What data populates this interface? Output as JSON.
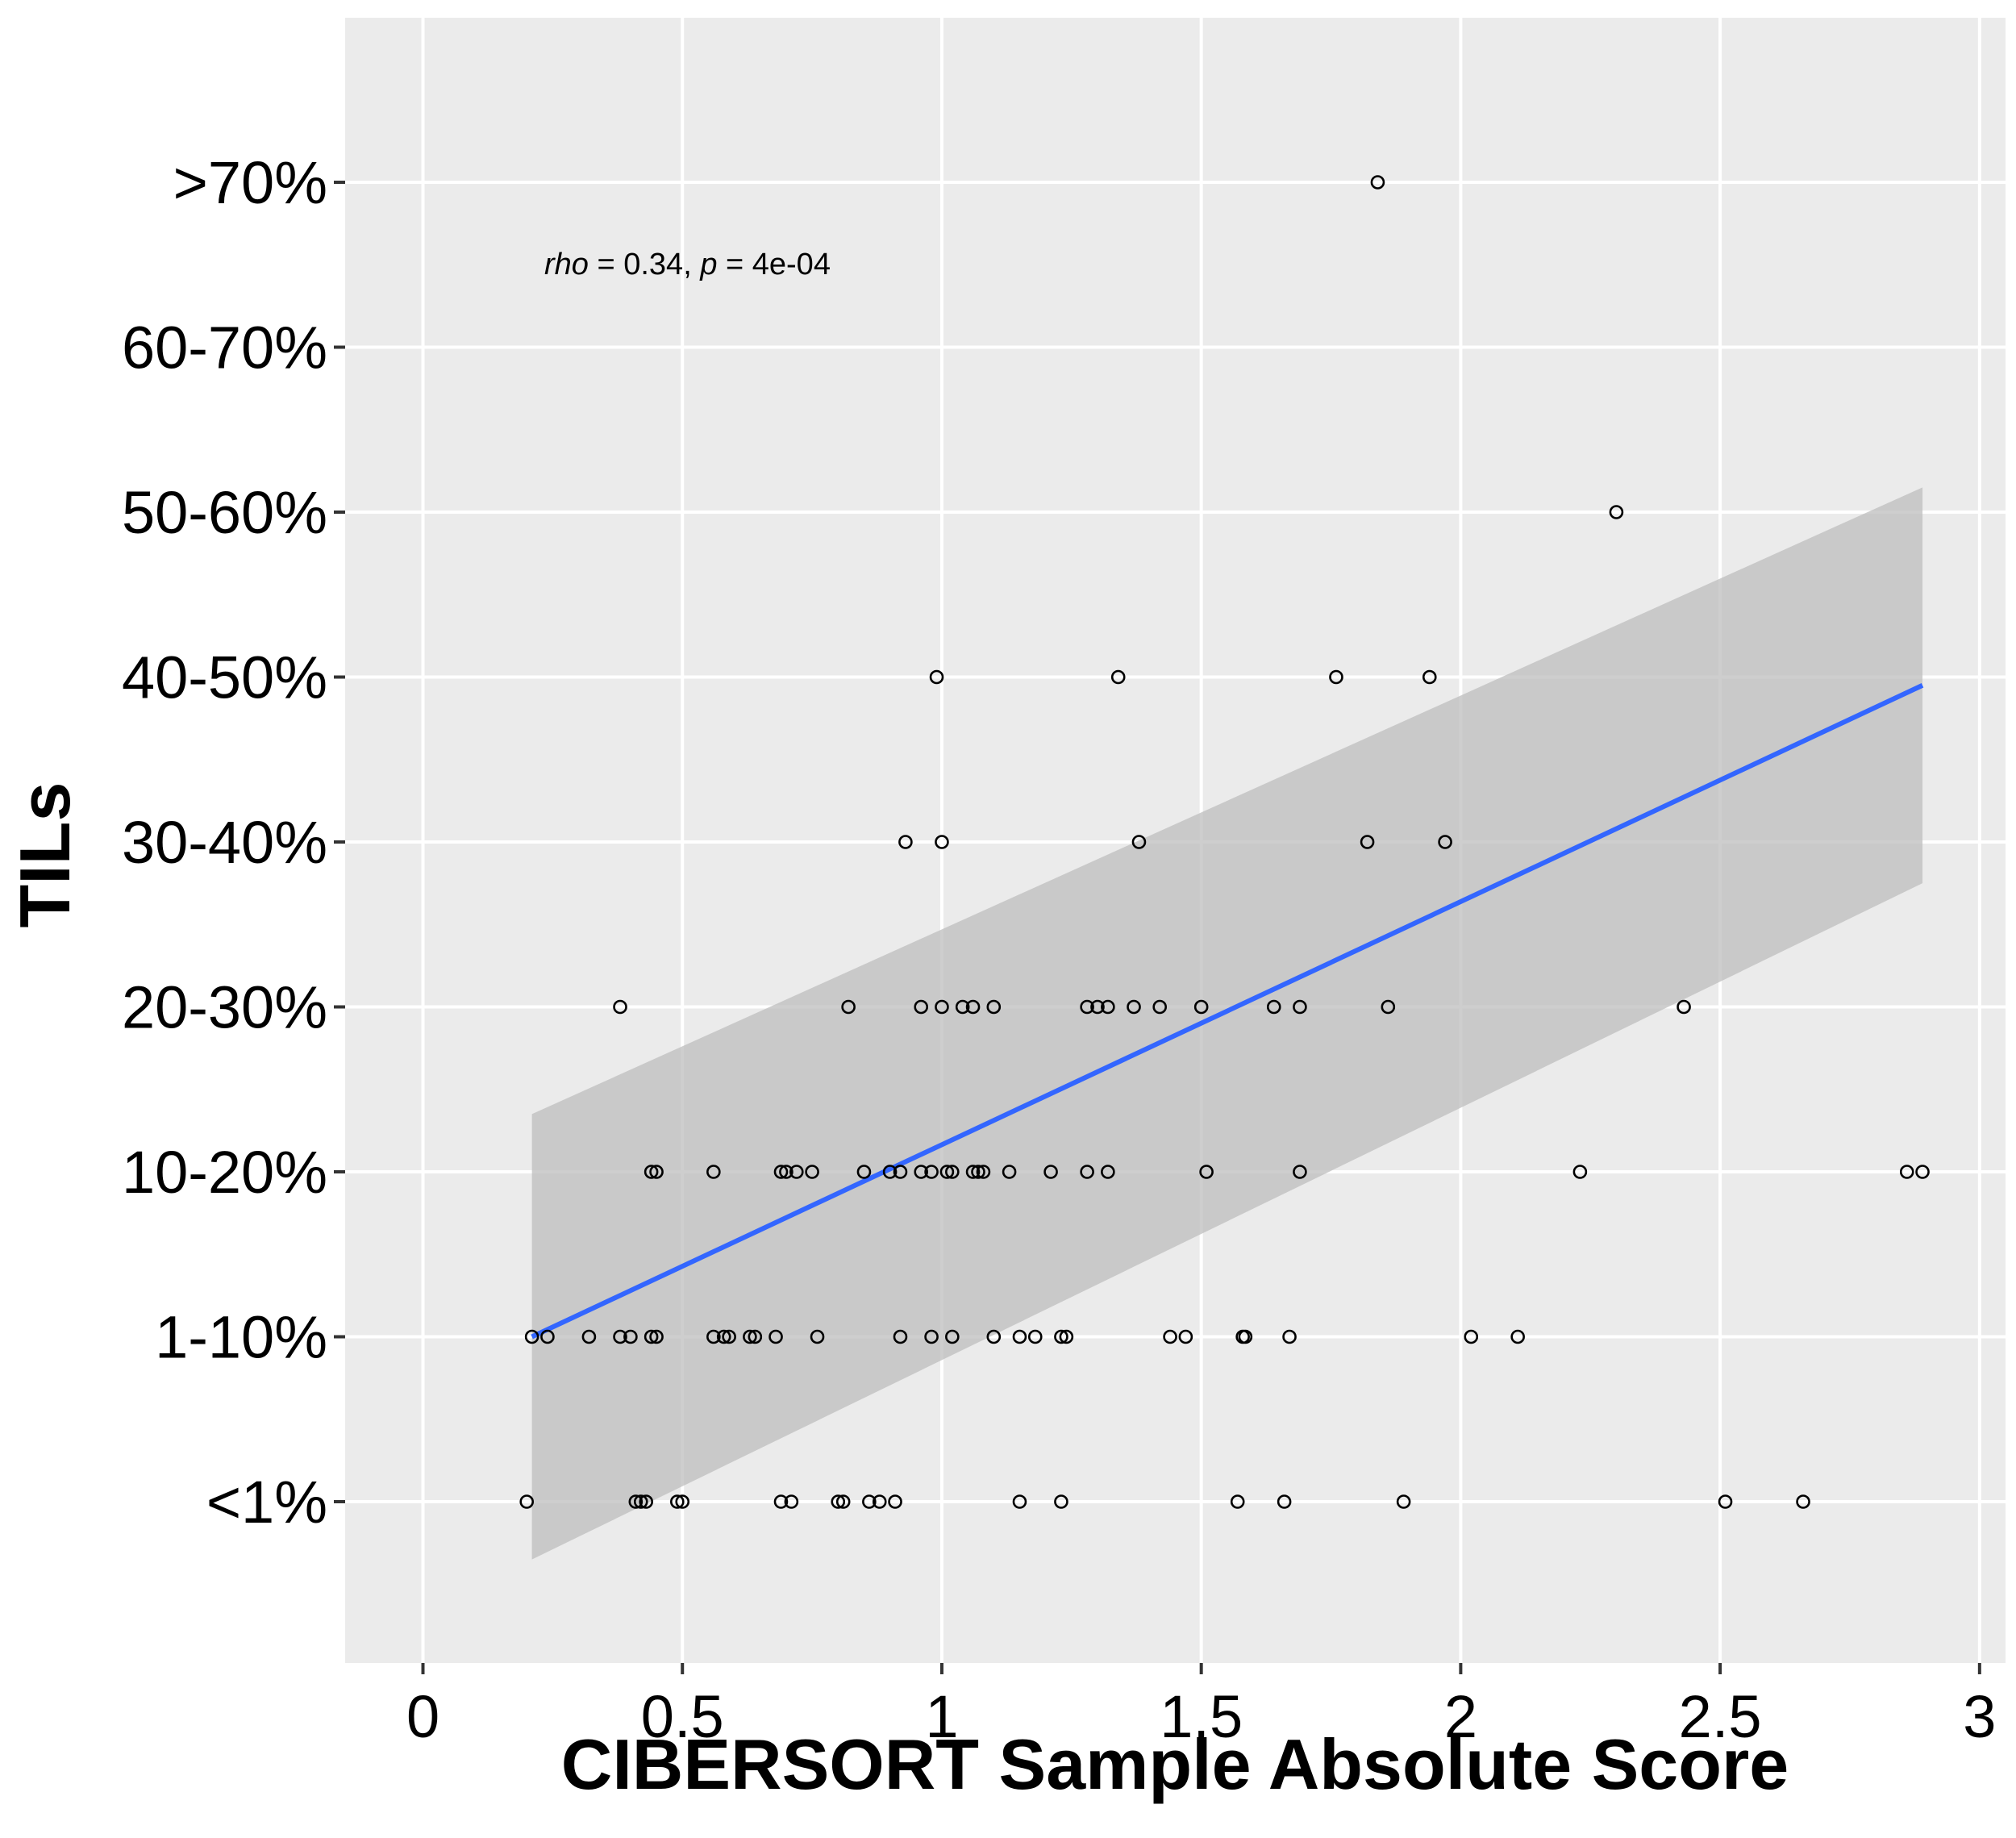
{
  "chart_data": {
    "type": "scatter",
    "title": "",
    "xlabel": "CIBERSORT Sample Absolute Score",
    "ylabel": "TILs",
    "xlim": [
      -0.15,
      3.05
    ],
    "x_ticks": [
      0,
      0.5,
      1,
      1.5,
      2,
      2.5,
      3
    ],
    "x_tick_labels": [
      "0",
      "0.5",
      "1",
      "1.5",
      "2",
      "2.5",
      "3"
    ],
    "categories": [
      "<1%",
      "1-10%",
      "10-20%",
      "20-30%",
      "30-40%",
      "40-50%",
      "50-60%",
      "60-70%",
      ">70%"
    ],
    "grid": true,
    "legend": "none",
    "annotation": {
      "rho_label": "rho",
      "rho_text": " = 0.34, ",
      "p_label": "p",
      "p_text": " = 4e-04"
    },
    "colors": {
      "panel": "#ebebeb",
      "grid": "#ffffff",
      "line": "#3366ff",
      "ribbon": "#bdbdbd",
      "point": "#000000"
    },
    "series": [
      {
        "type": "points",
        "points": [
          {
            "x": 1.84,
            "y": ">70%"
          },
          {
            "x": 2.3,
            "y": "50-60%"
          },
          {
            "x": 0.99,
            "y": "40-50%"
          },
          {
            "x": 1.34,
            "y": "40-50%"
          },
          {
            "x": 1.76,
            "y": "40-50%"
          },
          {
            "x": 1.94,
            "y": "40-50%"
          },
          {
            "x": 0.93,
            "y": "30-40%"
          },
          {
            "x": 1.0,
            "y": "30-40%"
          },
          {
            "x": 1.38,
            "y": "30-40%"
          },
          {
            "x": 1.82,
            "y": "30-40%"
          },
          {
            "x": 1.97,
            "y": "30-40%"
          },
          {
            "x": 0.38,
            "y": "20-30%"
          },
          {
            "x": 0.82,
            "y": "20-30%"
          },
          {
            "x": 0.96,
            "y": "20-30%"
          },
          {
            "x": 1.0,
            "y": "20-30%"
          },
          {
            "x": 1.04,
            "y": "20-30%"
          },
          {
            "x": 1.06,
            "y": "20-30%"
          },
          {
            "x": 1.1,
            "y": "20-30%"
          },
          {
            "x": 1.28,
            "y": "20-30%"
          },
          {
            "x": 1.3,
            "y": "20-30%"
          },
          {
            "x": 1.32,
            "y": "20-30%"
          },
          {
            "x": 1.37,
            "y": "20-30%"
          },
          {
            "x": 1.42,
            "y": "20-30%"
          },
          {
            "x": 1.5,
            "y": "20-30%"
          },
          {
            "x": 1.64,
            "y": "20-30%"
          },
          {
            "x": 1.69,
            "y": "20-30%"
          },
          {
            "x": 1.86,
            "y": "20-30%"
          },
          {
            "x": 2.43,
            "y": "20-30%"
          },
          {
            "x": 0.44,
            "y": "10-20%"
          },
          {
            "x": 0.45,
            "y": "10-20%"
          },
          {
            "x": 0.56,
            "y": "10-20%"
          },
          {
            "x": 0.69,
            "y": "10-20%"
          },
          {
            "x": 0.7,
            "y": "10-20%"
          },
          {
            "x": 0.72,
            "y": "10-20%"
          },
          {
            "x": 0.75,
            "y": "10-20%"
          },
          {
            "x": 0.85,
            "y": "10-20%"
          },
          {
            "x": 0.9,
            "y": "10-20%"
          },
          {
            "x": 0.92,
            "y": "10-20%"
          },
          {
            "x": 0.96,
            "y": "10-20%"
          },
          {
            "x": 0.98,
            "y": "10-20%"
          },
          {
            "x": 1.01,
            "y": "10-20%"
          },
          {
            "x": 1.02,
            "y": "10-20%"
          },
          {
            "x": 1.06,
            "y": "10-20%"
          },
          {
            "x": 1.07,
            "y": "10-20%"
          },
          {
            "x": 1.08,
            "y": "10-20%"
          },
          {
            "x": 1.13,
            "y": "10-20%"
          },
          {
            "x": 1.21,
            "y": "10-20%"
          },
          {
            "x": 1.28,
            "y": "10-20%"
          },
          {
            "x": 1.32,
            "y": "10-20%"
          },
          {
            "x": 1.51,
            "y": "10-20%"
          },
          {
            "x": 1.69,
            "y": "10-20%"
          },
          {
            "x": 2.23,
            "y": "10-20%"
          },
          {
            "x": 2.86,
            "y": "10-20%"
          },
          {
            "x": 2.89,
            "y": "10-20%"
          },
          {
            "x": 0.21,
            "y": "1-10%"
          },
          {
            "x": 0.24,
            "y": "1-10%"
          },
          {
            "x": 0.32,
            "y": "1-10%"
          },
          {
            "x": 0.38,
            "y": "1-10%"
          },
          {
            "x": 0.4,
            "y": "1-10%"
          },
          {
            "x": 0.44,
            "y": "1-10%"
          },
          {
            "x": 0.45,
            "y": "1-10%"
          },
          {
            "x": 0.56,
            "y": "1-10%"
          },
          {
            "x": 0.58,
            "y": "1-10%"
          },
          {
            "x": 0.59,
            "y": "1-10%"
          },
          {
            "x": 0.63,
            "y": "1-10%"
          },
          {
            "x": 0.64,
            "y": "1-10%"
          },
          {
            "x": 0.68,
            "y": "1-10%"
          },
          {
            "x": 0.76,
            "y": "1-10%"
          },
          {
            "x": 0.92,
            "y": "1-10%"
          },
          {
            "x": 0.98,
            "y": "1-10%"
          },
          {
            "x": 1.02,
            "y": "1-10%"
          },
          {
            "x": 1.1,
            "y": "1-10%"
          },
          {
            "x": 1.15,
            "y": "1-10%"
          },
          {
            "x": 1.18,
            "y": "1-10%"
          },
          {
            "x": 1.23,
            "y": "1-10%"
          },
          {
            "x": 1.24,
            "y": "1-10%"
          },
          {
            "x": 1.44,
            "y": "1-10%"
          },
          {
            "x": 1.47,
            "y": "1-10%"
          },
          {
            "x": 1.58,
            "y": "1-10%"
          },
          {
            "x": 1.585,
            "y": "1-10%"
          },
          {
            "x": 1.67,
            "y": "1-10%"
          },
          {
            "x": 2.02,
            "y": "1-10%"
          },
          {
            "x": 2.11,
            "y": "1-10%"
          },
          {
            "x": 0.2,
            "y": "<1%"
          },
          {
            "x": 0.41,
            "y": "<1%"
          },
          {
            "x": 0.42,
            "y": "<1%"
          },
          {
            "x": 0.43,
            "y": "<1%"
          },
          {
            "x": 0.49,
            "y": "<1%"
          },
          {
            "x": 0.5,
            "y": "<1%"
          },
          {
            "x": 0.69,
            "y": "<1%"
          },
          {
            "x": 0.71,
            "y": "<1%"
          },
          {
            "x": 0.8,
            "y": "<1%"
          },
          {
            "x": 0.81,
            "y": "<1%"
          },
          {
            "x": 0.86,
            "y": "<1%"
          },
          {
            "x": 0.88,
            "y": "<1%"
          },
          {
            "x": 0.91,
            "y": "<1%"
          },
          {
            "x": 1.15,
            "y": "<1%"
          },
          {
            "x": 1.23,
            "y": "<1%"
          },
          {
            "x": 1.57,
            "y": "<1%"
          },
          {
            "x": 1.66,
            "y": "<1%"
          },
          {
            "x": 1.89,
            "y": "<1%"
          },
          {
            "x": 2.51,
            "y": "<1%"
          },
          {
            "x": 2.66,
            "y": "<1%"
          }
        ]
      },
      {
        "type": "regression",
        "x_range": [
          0.21,
          2.89
        ],
        "fit_y": [
          1.0,
          4.95
        ],
        "ci_lower": [
          -0.35,
          3.75
        ],
        "ci_upper": [
          2.35,
          6.15
        ]
      }
    ]
  }
}
